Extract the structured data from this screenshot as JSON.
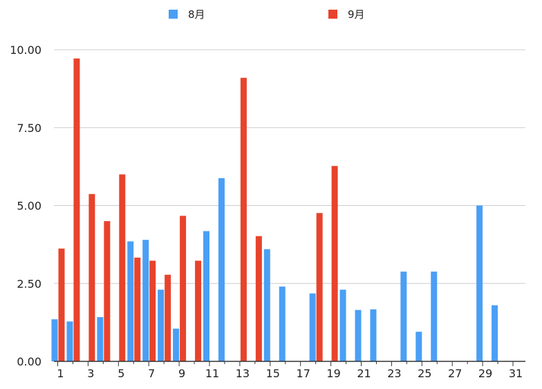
{
  "colors": {
    "series_aug": "#4a9ff5",
    "series_sep": "#e8432c",
    "grid": "#cccccc",
    "axis": "#333333",
    "text": "#222222"
  },
  "chart_data": {
    "type": "bar",
    "title": "",
    "xlabel": "",
    "ylabel": "",
    "ylim": [
      0,
      10
    ],
    "yticks": [
      "0.00",
      "2.50",
      "5.00",
      "7.50",
      "10.00"
    ],
    "xticks": [
      "1",
      "3",
      "5",
      "7",
      "9",
      "11",
      "13",
      "15",
      "17",
      "19",
      "21",
      "23",
      "25",
      "27",
      "29",
      "31"
    ],
    "categories": [
      1,
      2,
      3,
      4,
      5,
      6,
      7,
      8,
      9,
      10,
      11,
      12,
      13,
      14,
      15,
      16,
      17,
      18,
      19,
      20,
      21,
      22,
      23,
      24,
      25,
      26,
      27,
      28,
      29,
      30,
      31
    ],
    "grid": true,
    "legend_position": "top",
    "series": [
      {
        "name": "8月",
        "values": [
          1.35,
          1.28,
          null,
          1.42,
          null,
          3.85,
          3.9,
          2.3,
          1.05,
          null,
          4.18,
          5.88,
          null,
          null,
          3.6,
          2.4,
          null,
          2.18,
          null,
          2.3,
          1.65,
          1.67,
          null,
          2.88,
          0.95,
          2.88,
          null,
          null,
          5.0,
          1.8,
          null
        ]
      },
      {
        "name": "9月",
        "values": [
          3.62,
          9.72,
          5.37,
          4.5,
          6.0,
          3.33,
          3.23,
          2.78,
          4.67,
          3.23,
          null,
          null,
          9.1,
          4.02,
          null,
          null,
          null,
          4.76,
          6.27,
          null,
          null,
          null,
          null,
          null,
          null,
          null,
          null,
          null,
          null,
          null,
          null
        ]
      }
    ]
  }
}
